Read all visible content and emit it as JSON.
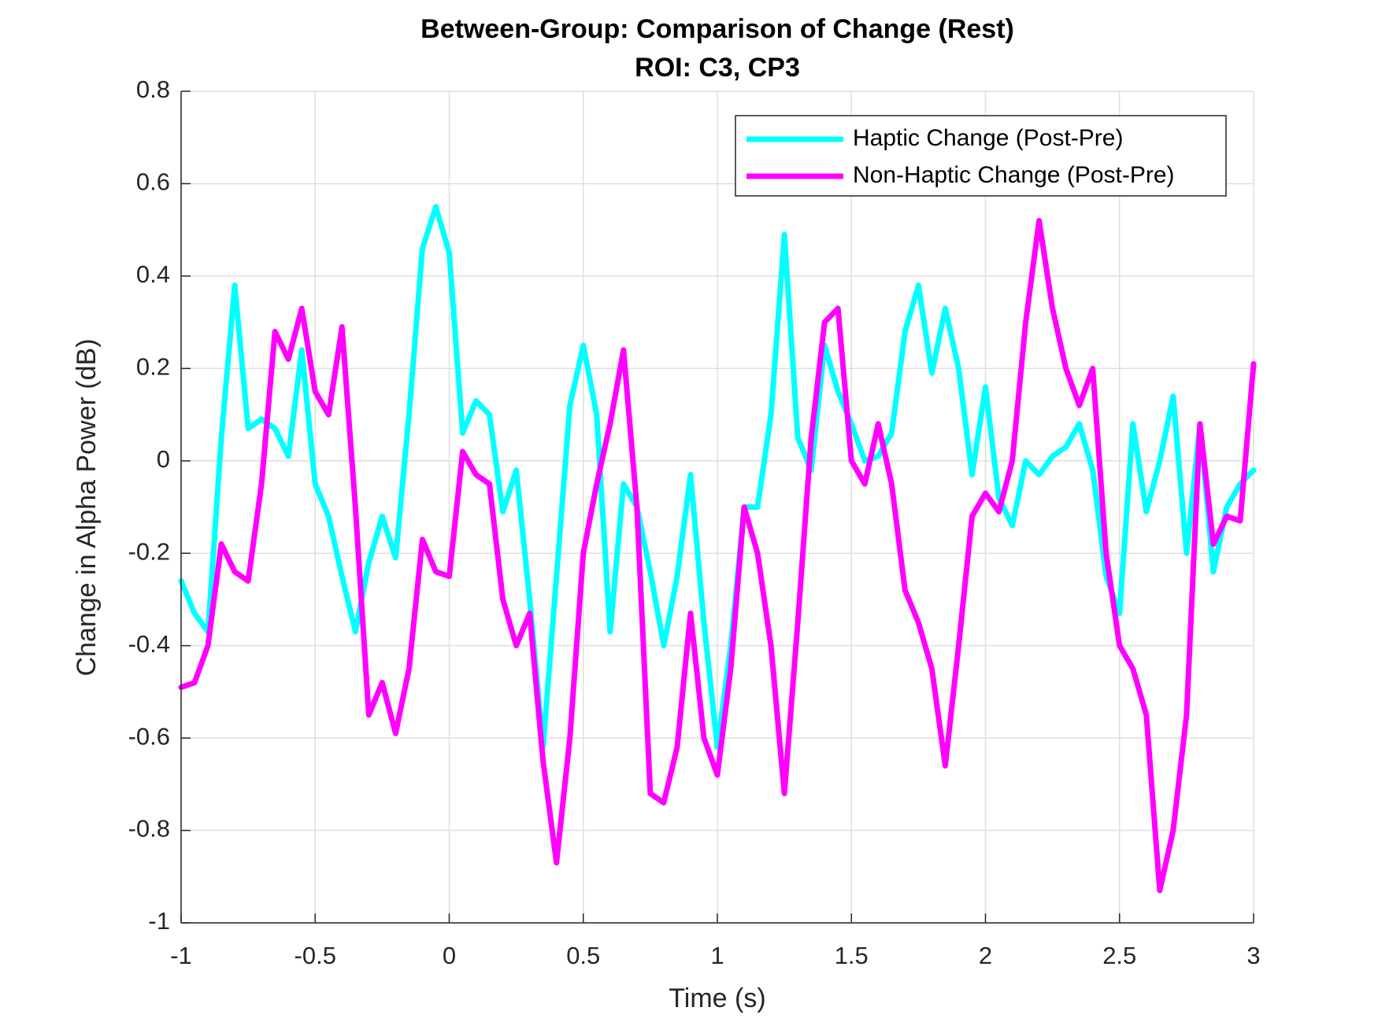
{
  "chart_data": {
    "type": "line",
    "title": "Between-Group: Comparison of Change (Rest)",
    "subtitle": "ROI: C3, CP3",
    "xlabel": "Time (s)",
    "ylabel": "Change in Alpha Power (dB)",
    "x": [
      -1,
      -0.95,
      -0.9,
      -0.85,
      -0.8,
      -0.75,
      -0.7,
      -0.65,
      -0.6,
      -0.55,
      -0.5,
      -0.45,
      -0.4,
      -0.35,
      -0.3,
      -0.25,
      -0.2,
      -0.15,
      -0.1,
      -0.05,
      0,
      0.05,
      0.1,
      0.15,
      0.2,
      0.25,
      0.3,
      0.35,
      0.4,
      0.45,
      0.5,
      0.55,
      0.6,
      0.65,
      0.7,
      0.75,
      0.8,
      0.85,
      0.9,
      0.95,
      1,
      1.05,
      1.1,
      1.15,
      1.2,
      1.25,
      1.3,
      1.35,
      1.4,
      1.45,
      1.5,
      1.55,
      1.6,
      1.65,
      1.7,
      1.75,
      1.8,
      1.85,
      1.9,
      1.95,
      2,
      2.05,
      2.1,
      2.15,
      2.2,
      2.25,
      2.3,
      2.35,
      2.4,
      2.45,
      2.5,
      2.55,
      2.6,
      2.65,
      2.7,
      2.75,
      2.8,
      2.85,
      2.9,
      2.95,
      3
    ],
    "series": [
      {
        "name": "Haptic Change (Post-Pre)",
        "color": "#00ffff",
        "values": [
          -0.26,
          -0.33,
          -0.37,
          0.05,
          0.38,
          0.07,
          0.09,
          0.07,
          0.01,
          0.24,
          -0.05,
          -0.12,
          -0.25,
          -0.37,
          -0.22,
          -0.12,
          -0.21,
          0.1,
          0.46,
          0.55,
          0.45,
          0.06,
          0.13,
          0.1,
          -0.11,
          -0.02,
          -0.3,
          -0.62,
          -0.25,
          0.12,
          0.25,
          0.1,
          -0.37,
          -0.05,
          -0.1,
          -0.24,
          -0.4,
          -0.25,
          -0.03,
          -0.35,
          -0.62,
          -0.4,
          -0.1,
          -0.1,
          0.1,
          0.49,
          0.05,
          -0.02,
          0.25,
          0.15,
          0.08,
          0,
          0.01,
          0.06,
          0.28,
          0.38,
          0.19,
          0.33,
          0.2,
          -0.03,
          0.16,
          -0.08,
          -0.14,
          0,
          -0.03,
          0.01,
          0.03,
          0.08,
          -0.02,
          -0.25,
          -0.33,
          0.08,
          -0.11,
          0,
          0.14,
          -0.2,
          0.08,
          -0.24,
          -0.1,
          -0.05,
          -0.02
        ]
      },
      {
        "name": "Non-Haptic Change (Post-Pre)",
        "color": "#ff00ff",
        "values": [
          -0.49,
          -0.48,
          -0.4,
          -0.18,
          -0.24,
          -0.26,
          -0.05,
          0.28,
          0.22,
          0.33,
          0.15,
          0.1,
          0.29,
          -0.1,
          -0.55,
          -0.48,
          -0.59,
          -0.45,
          -0.17,
          -0.24,
          -0.25,
          0.02,
          -0.03,
          -0.05,
          -0.3,
          -0.4,
          -0.33,
          -0.65,
          -0.87,
          -0.6,
          -0.2,
          -0.05,
          0.08,
          0.24,
          -0.1,
          -0.72,
          -0.74,
          -0.62,
          -0.33,
          -0.6,
          -0.68,
          -0.45,
          -0.1,
          -0.2,
          -0.4,
          -0.72,
          -0.35,
          0.05,
          0.3,
          0.33,
          0,
          -0.05,
          0.08,
          -0.05,
          -0.28,
          -0.35,
          -0.45,
          -0.66,
          -0.4,
          -0.12,
          -0.07,
          -0.11,
          0,
          0.3,
          0.52,
          0.33,
          0.2,
          0.12,
          0.2,
          -0.2,
          -0.4,
          -0.45,
          -0.55,
          -0.93,
          -0.8,
          -0.55,
          0.08,
          -0.18,
          -0.12,
          -0.13,
          0.21
        ]
      }
    ],
    "xlim": [
      -1,
      3
    ],
    "xticks": [
      -1,
      -0.5,
      0,
      0.5,
      1,
      1.5,
      2,
      2.5,
      3
    ],
    "ylim": [
      -1,
      0.8
    ],
    "yticks": [
      -1,
      -0.8,
      -0.6,
      -0.4,
      -0.2,
      0,
      0.2,
      0.4,
      0.6,
      0.8
    ],
    "grid": true,
    "legend": "northeast"
  }
}
